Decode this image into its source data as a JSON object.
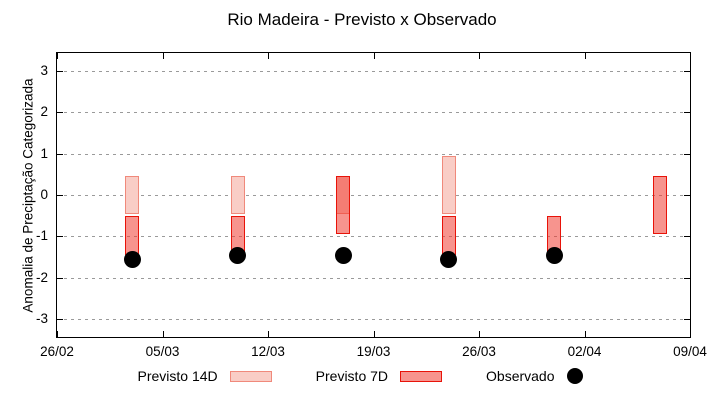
{
  "title": "Rio Madeira - Previsto x Observado",
  "colors": {
    "p14_fill": "#f9cdc6",
    "p14_border": "#f0897b",
    "p7_fill": "rgba(240,60,50,0.55)",
    "p7_border": "#e81309",
    "dot": "#000000",
    "grid": "#9a9a9a",
    "axis": "#000000",
    "background": "#ffffff"
  },
  "chart_data": {
    "type": "bar",
    "subtype": "floating-range-bars-with-scatter",
    "title": "Rio Madeira - Previsto x Observado",
    "xlabel": "",
    "ylabel": "Anomalia de Preciptação Categorizada",
    "ylim": [
      -3.43,
      3.43
    ],
    "yticks": [
      3,
      2,
      1,
      0,
      -1,
      -2,
      -3
    ],
    "ytick_labels": [
      "3",
      "2",
      "1",
      "0",
      "-1",
      "-2",
      "-3"
    ],
    "grid": "horizontal dashed lines at integer y values",
    "legend_position": "below plot, horizontal",
    "x_axis_days_range": [
      0,
      42
    ],
    "xticks_days": [
      0,
      7,
      14,
      21,
      28,
      35,
      42
    ],
    "xtick_labels": [
      "26/02",
      "05/03",
      "12/03",
      "19/03",
      "26/03",
      "02/04",
      "09/04"
    ],
    "series": [
      {
        "name": "Previsto 14D",
        "type": "range-bar",
        "points": [
          {
            "day": 5,
            "date": "03/03",
            "high": 0.45,
            "low": -0.45
          },
          {
            "day": 12,
            "date": "10/03",
            "high": 0.45,
            "low": -0.45
          },
          {
            "day": 19,
            "date": "17/03",
            "high": 0.45,
            "low": -0.45
          },
          {
            "day": 26,
            "date": "24/03",
            "high": 0.95,
            "low": -0.45
          }
        ]
      },
      {
        "name": "Previsto 7D",
        "type": "range-bar",
        "points": [
          {
            "day": 5,
            "date": "03/03",
            "high": -0.5,
            "low": -1.45
          },
          {
            "day": 12,
            "date": "10/03",
            "high": -0.5,
            "low": -1.45
          },
          {
            "day": 19,
            "date": "17/03",
            "high": 0.45,
            "low": -0.95
          },
          {
            "day": 26,
            "date": "24/03",
            "high": -0.5,
            "low": -1.45
          },
          {
            "day": 33,
            "date": "31/03",
            "high": -0.5,
            "low": -1.45
          },
          {
            "day": 40,
            "date": "07/04",
            "high": 0.45,
            "low": -0.95
          }
        ]
      },
      {
        "name": "Observado",
        "type": "scatter",
        "points": [
          {
            "day": 5,
            "date": "03/03",
            "value": -1.55
          },
          {
            "day": 12,
            "date": "10/03",
            "value": -1.45
          },
          {
            "day": 19,
            "date": "17/03",
            "value": -1.45
          },
          {
            "day": 26,
            "date": "24/03",
            "value": -1.55
          },
          {
            "day": 33,
            "date": "31/03",
            "value": -1.45
          }
        ]
      }
    ]
  },
  "legend": {
    "items": [
      {
        "label": "Previsto 14D",
        "swatch": "bar-14d"
      },
      {
        "label": "Previsto 7D",
        "swatch": "bar-7d"
      },
      {
        "label": "Observado",
        "swatch": "dot"
      }
    ]
  }
}
